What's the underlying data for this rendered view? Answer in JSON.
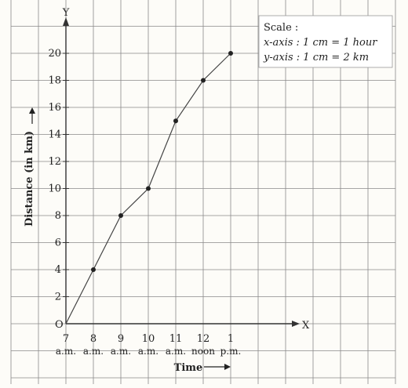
{
  "chart_data": {
    "type": "line",
    "title": "",
    "x": [
      "7",
      "8",
      "9",
      "10",
      "11",
      "12",
      "1"
    ],
    "x_sublabels": [
      "a.m.",
      "a.m.",
      "a.m.",
      "a.m.",
      "a.m.",
      "noon",
      "p.m."
    ],
    "values": [
      0,
      4,
      8,
      10,
      15,
      18,
      20
    ],
    "y_ticks": [
      2,
      4,
      6,
      8,
      10,
      12,
      14,
      16,
      18,
      20
    ],
    "xlabel": "Time",
    "ylabel": "Distance (in km)",
    "ylim": [
      0,
      20
    ],
    "origin_label": "O",
    "x_axis_letter": "X",
    "y_axis_letter": "Y",
    "grid": true,
    "scale": {
      "heading": "Scale :",
      "x_axis": "x-axis : 1 cm = 1 hour",
      "y_axis": "y-axis : 1 cm = 2 km"
    }
  }
}
